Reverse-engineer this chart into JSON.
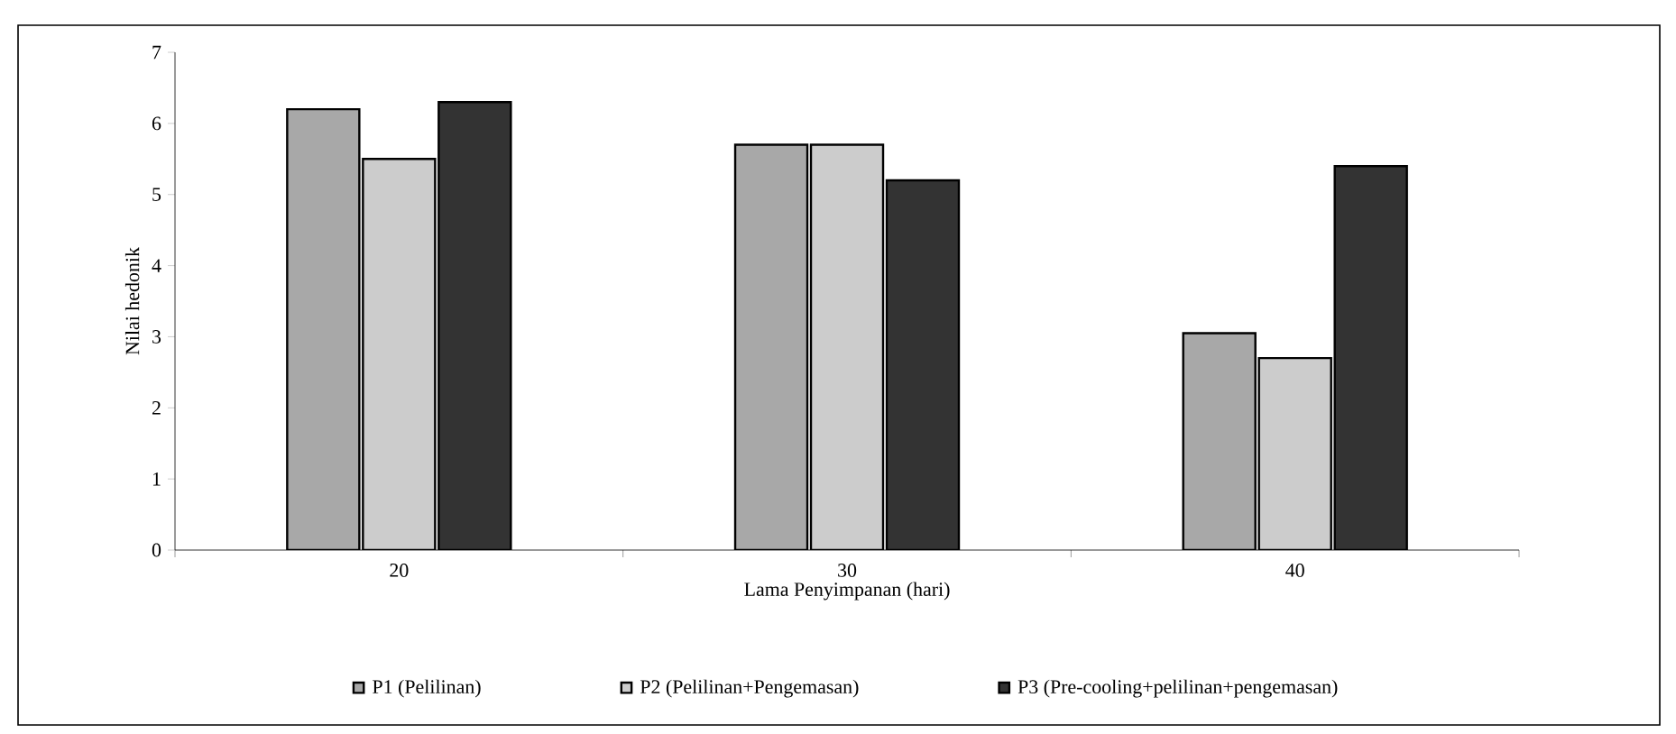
{
  "chart_data": {
    "type": "bar",
    "xlabel": "Lama Penyimpanan (hari)",
    "ylabel": "Nilai hedonik",
    "categories": [
      "20",
      "30",
      "40"
    ],
    "series": [
      {
        "name": "P1 (Pelilinan)",
        "color": "#a8a8a8",
        "values": [
          6.2,
          5.7,
          3.05
        ]
      },
      {
        "name": "P2 (Pelilinan+Pengemasan)",
        "color": "#cccccc",
        "values": [
          5.5,
          5.7,
          2.7
        ]
      },
      {
        "name": "P3 (Pre-cooling+pelilinan+pengemasan)",
        "color": "#333333",
        "values": [
          6.3,
          5.2,
          5.4
        ]
      }
    ],
    "ylim": [
      0,
      7
    ],
    "yticks": [
      0,
      1,
      2,
      3,
      4,
      5,
      6,
      7
    ],
    "grid": false,
    "legend": "bottom"
  }
}
